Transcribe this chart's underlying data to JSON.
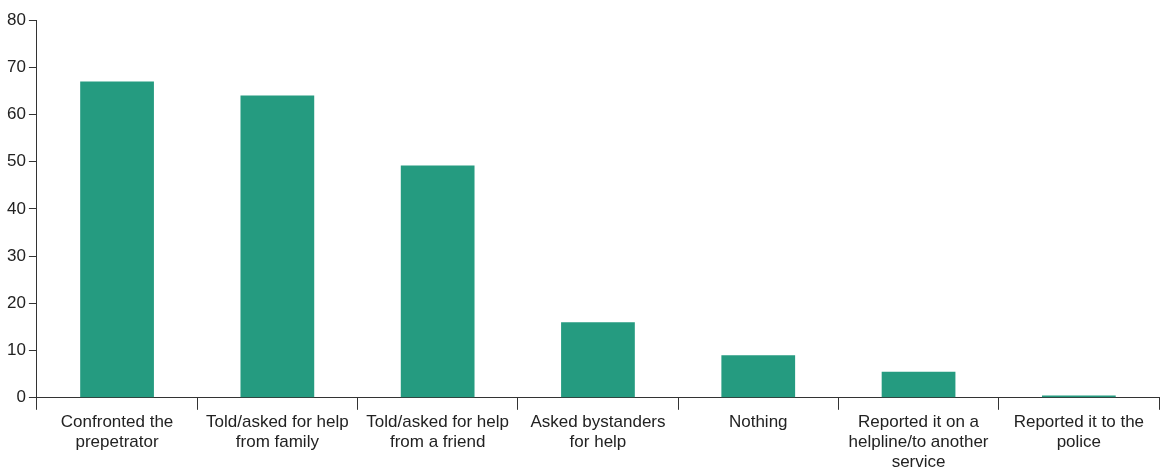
{
  "chart_data": {
    "type": "bar",
    "categories": [
      "Confronted the prepetrator",
      "Told/asked for help from family",
      "Told/asked for help from a friend",
      "Asked bystanders for help",
      "Nothing",
      "Reported it on a helpline/to another service",
      "Reported it to the police"
    ],
    "values": [
      67,
      64,
      49.2,
      16,
      9,
      5.5,
      0.5
    ],
    "color": "#259b80",
    "ylim": [
      0,
      80
    ],
    "yticks": [
      0,
      10,
      20,
      30,
      40,
      50,
      60,
      70,
      80
    ],
    "grid": false,
    "legend": false
  }
}
